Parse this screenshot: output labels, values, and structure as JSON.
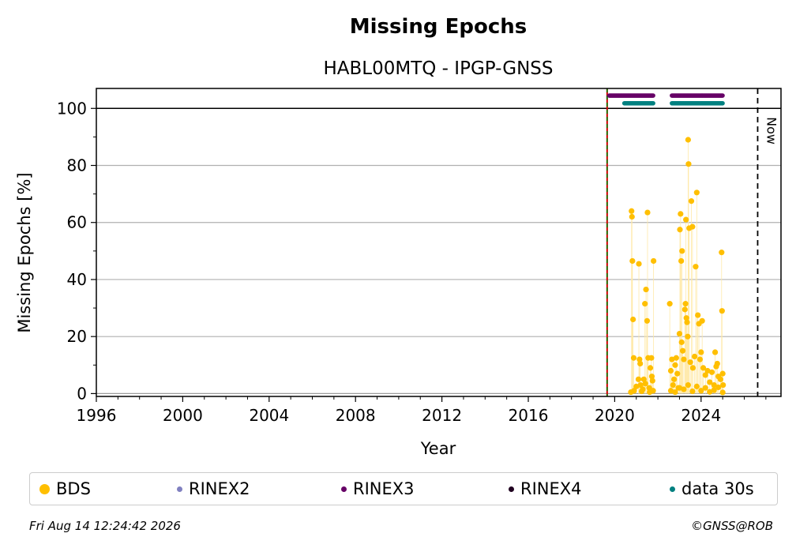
{
  "chart_data": {
    "type": "scatter",
    "title": "Missing Epochs",
    "subtitle": "HABL00MTQ - IPGP-GNSS",
    "xlabel": "Year",
    "ylabel": "Missing Epochs [%]",
    "xlim": [
      1996,
      2027.7
    ],
    "ylim": [
      -1,
      107
    ],
    "x_ticks": [
      1996,
      2000,
      2004,
      2008,
      2012,
      2016,
      2020,
      2024
    ],
    "y_ticks": [
      0,
      20,
      40,
      60,
      80,
      100
    ],
    "grid": "horizontal",
    "reference_lines": {
      "hundred_percent": 100,
      "start_marker_year": 2019.65,
      "now_year": 2026.62,
      "now_label": "Now"
    },
    "series": [
      {
        "name": "BDS",
        "color": "#ffbf00",
        "points": [
          [
            2020.75,
            0.5
          ],
          [
            2020.78,
            64
          ],
          [
            2020.8,
            62
          ],
          [
            2020.82,
            46.5
          ],
          [
            2020.85,
            26
          ],
          [
            2020.88,
            12.5
          ],
          [
            2020.9,
            1
          ],
          [
            2021.1,
            5
          ],
          [
            2021.12,
            45.5
          ],
          [
            2021.15,
            12
          ],
          [
            2021.18,
            10.5
          ],
          [
            2021.2,
            3
          ],
          [
            2021.3,
            1.5
          ],
          [
            2021.35,
            5
          ],
          [
            2021.4,
            31.5
          ],
          [
            2021.45,
            36.5
          ],
          [
            2021.5,
            25.5
          ],
          [
            2021.52,
            63.5
          ],
          [
            2021.55,
            12.5
          ],
          [
            2021.6,
            2
          ],
          [
            2021.65,
            9
          ],
          [
            2021.7,
            12.5
          ],
          [
            2021.72,
            6
          ],
          [
            2021.75,
            4.5
          ],
          [
            2021.78,
            1
          ],
          [
            2021.8,
            46.5
          ],
          [
            2021.0,
            2.5
          ],
          [
            2021.25,
            0.8
          ],
          [
            2021.62,
            0.5
          ],
          [
            2021.42,
            3.5
          ],
          [
            2022.55,
            31.5
          ],
          [
            2022.6,
            8
          ],
          [
            2022.65,
            12
          ],
          [
            2022.7,
            3
          ],
          [
            2022.75,
            5
          ],
          [
            2022.8,
            10
          ],
          [
            2022.85,
            12.5
          ],
          [
            2022.9,
            7
          ],
          [
            2022.95,
            2
          ],
          [
            2023.0,
            21
          ],
          [
            2023.02,
            57.5
          ],
          [
            2023.05,
            63
          ],
          [
            2023.08,
            46.5
          ],
          [
            2023.1,
            18
          ],
          [
            2023.12,
            50
          ],
          [
            2023.15,
            15
          ],
          [
            2023.2,
            12
          ],
          [
            2023.25,
            29.5
          ],
          [
            2023.28,
            31.5
          ],
          [
            2023.3,
            61
          ],
          [
            2023.32,
            26.5
          ],
          [
            2023.35,
            25
          ],
          [
            2023.38,
            20
          ],
          [
            2023.4,
            89
          ],
          [
            2023.42,
            80.5
          ],
          [
            2023.45,
            58
          ],
          [
            2023.5,
            11
          ],
          [
            2023.55,
            67.5
          ],
          [
            2023.6,
            58.5
          ],
          [
            2023.62,
            9
          ],
          [
            2023.7,
            13
          ],
          [
            2023.75,
            44.5
          ],
          [
            2023.8,
            70.5
          ],
          [
            2023.85,
            27.5
          ],
          [
            2023.9,
            24.5
          ],
          [
            2023.95,
            12
          ],
          [
            2024.0,
            14.5
          ],
          [
            2024.05,
            25.5
          ],
          [
            2024.1,
            9
          ],
          [
            2024.2,
            6.5
          ],
          [
            2024.3,
            8
          ],
          [
            2024.4,
            4
          ],
          [
            2024.5,
            7.5
          ],
          [
            2024.6,
            3
          ],
          [
            2024.65,
            14.5
          ],
          [
            2024.7,
            9.5
          ],
          [
            2024.75,
            10.5
          ],
          [
            2024.8,
            6
          ],
          [
            2024.9,
            5
          ],
          [
            2024.95,
            49.5
          ],
          [
            2024.97,
            29
          ],
          [
            2025.0,
            7
          ],
          [
            2025.02,
            3
          ],
          [
            2022.6,
            1
          ],
          [
            2022.8,
            0.5
          ],
          [
            2023.0,
            2
          ],
          [
            2023.2,
            1.5
          ],
          [
            2023.4,
            3
          ],
          [
            2023.6,
            0.8
          ],
          [
            2023.8,
            2.5
          ],
          [
            2024.0,
            1
          ],
          [
            2024.2,
            2
          ],
          [
            2024.4,
            0.6
          ],
          [
            2024.6,
            1.2
          ],
          [
            2024.8,
            2.2
          ],
          [
            2025.0,
            0.4
          ]
        ]
      },
      {
        "name": "RINEX2",
        "color": "#8080c0",
        "points": []
      },
      {
        "name": "RINEX3",
        "color": "#660066",
        "y": 104.5,
        "ranges": [
          [
            2019.75,
            2021.8
          ],
          [
            2022.65,
            2025.0
          ]
        ]
      },
      {
        "name": "RINEX4",
        "color": "#200020",
        "points": []
      },
      {
        "name": "data 30s",
        "color": "#008080",
        "y": 101.8,
        "ranges": [
          [
            2020.45,
            2021.8
          ],
          [
            2022.65,
            2025.0
          ]
        ]
      }
    ]
  },
  "footer": {
    "timestamp": "Fri Aug 14 12:24:42 2026",
    "credit": "©GNSS@ROB"
  }
}
